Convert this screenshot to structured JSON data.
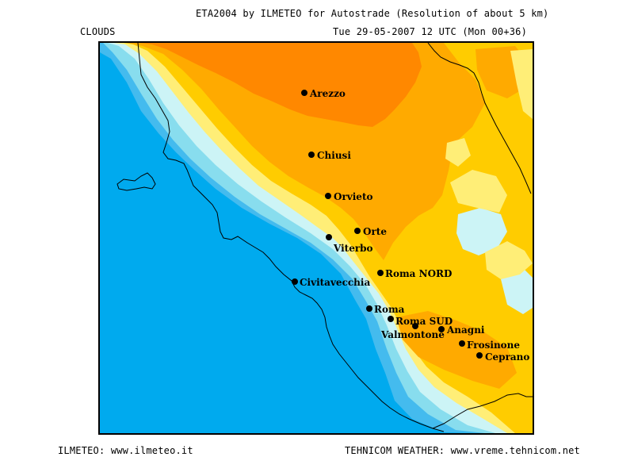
{
  "header": {
    "title": "ETA2004 by ILMETEO for Autostrade (Resolution of about 5 km)",
    "subtitle": "Tue 29-05-2007 12 UTC (Mon 00+36)",
    "product": "CLOUDS"
  },
  "footer": {
    "left": "ILMETEO: www.ilmeteo.it",
    "right": "TEHNICOM WEATHER: www.vreme.tehnicom.net"
  },
  "colors": {
    "sea": "#00aaee",
    "coast_band_1": "#44bbee",
    "coast_band_2": "#88ddee",
    "coast_band_3": "#ccf4f6",
    "clouds_low": "#ffee77",
    "clouds_mid": "#ffcc00",
    "clouds_high": "#ffaa00",
    "clouds_max": "#ff8800",
    "boundary": "#000000"
  },
  "cities": [
    {
      "name": "Arezzo",
      "label": "Arezzo"
    },
    {
      "name": "Chiusi",
      "label": "Chiusi"
    },
    {
      "name": "Orvieto",
      "label": "Orvieto"
    },
    {
      "name": "Orte",
      "label": "Orte"
    },
    {
      "name": "Viterbo",
      "label": "Viterbo"
    },
    {
      "name": "Roma NORD",
      "label": "Roma NORD"
    },
    {
      "name": "Civitavecchia",
      "label": "Civitavecchia"
    },
    {
      "name": "Roma",
      "label": "Roma"
    },
    {
      "name": "Roma SUD",
      "label": "Roma SUD"
    },
    {
      "name": "Valmontone",
      "label": "Valmontone"
    },
    {
      "name": "Anagni",
      "label": "Anagni"
    },
    {
      "name": "Frosinone",
      "label": "Frosinone"
    },
    {
      "name": "Ceprano",
      "label": "Ceprano"
    }
  ]
}
